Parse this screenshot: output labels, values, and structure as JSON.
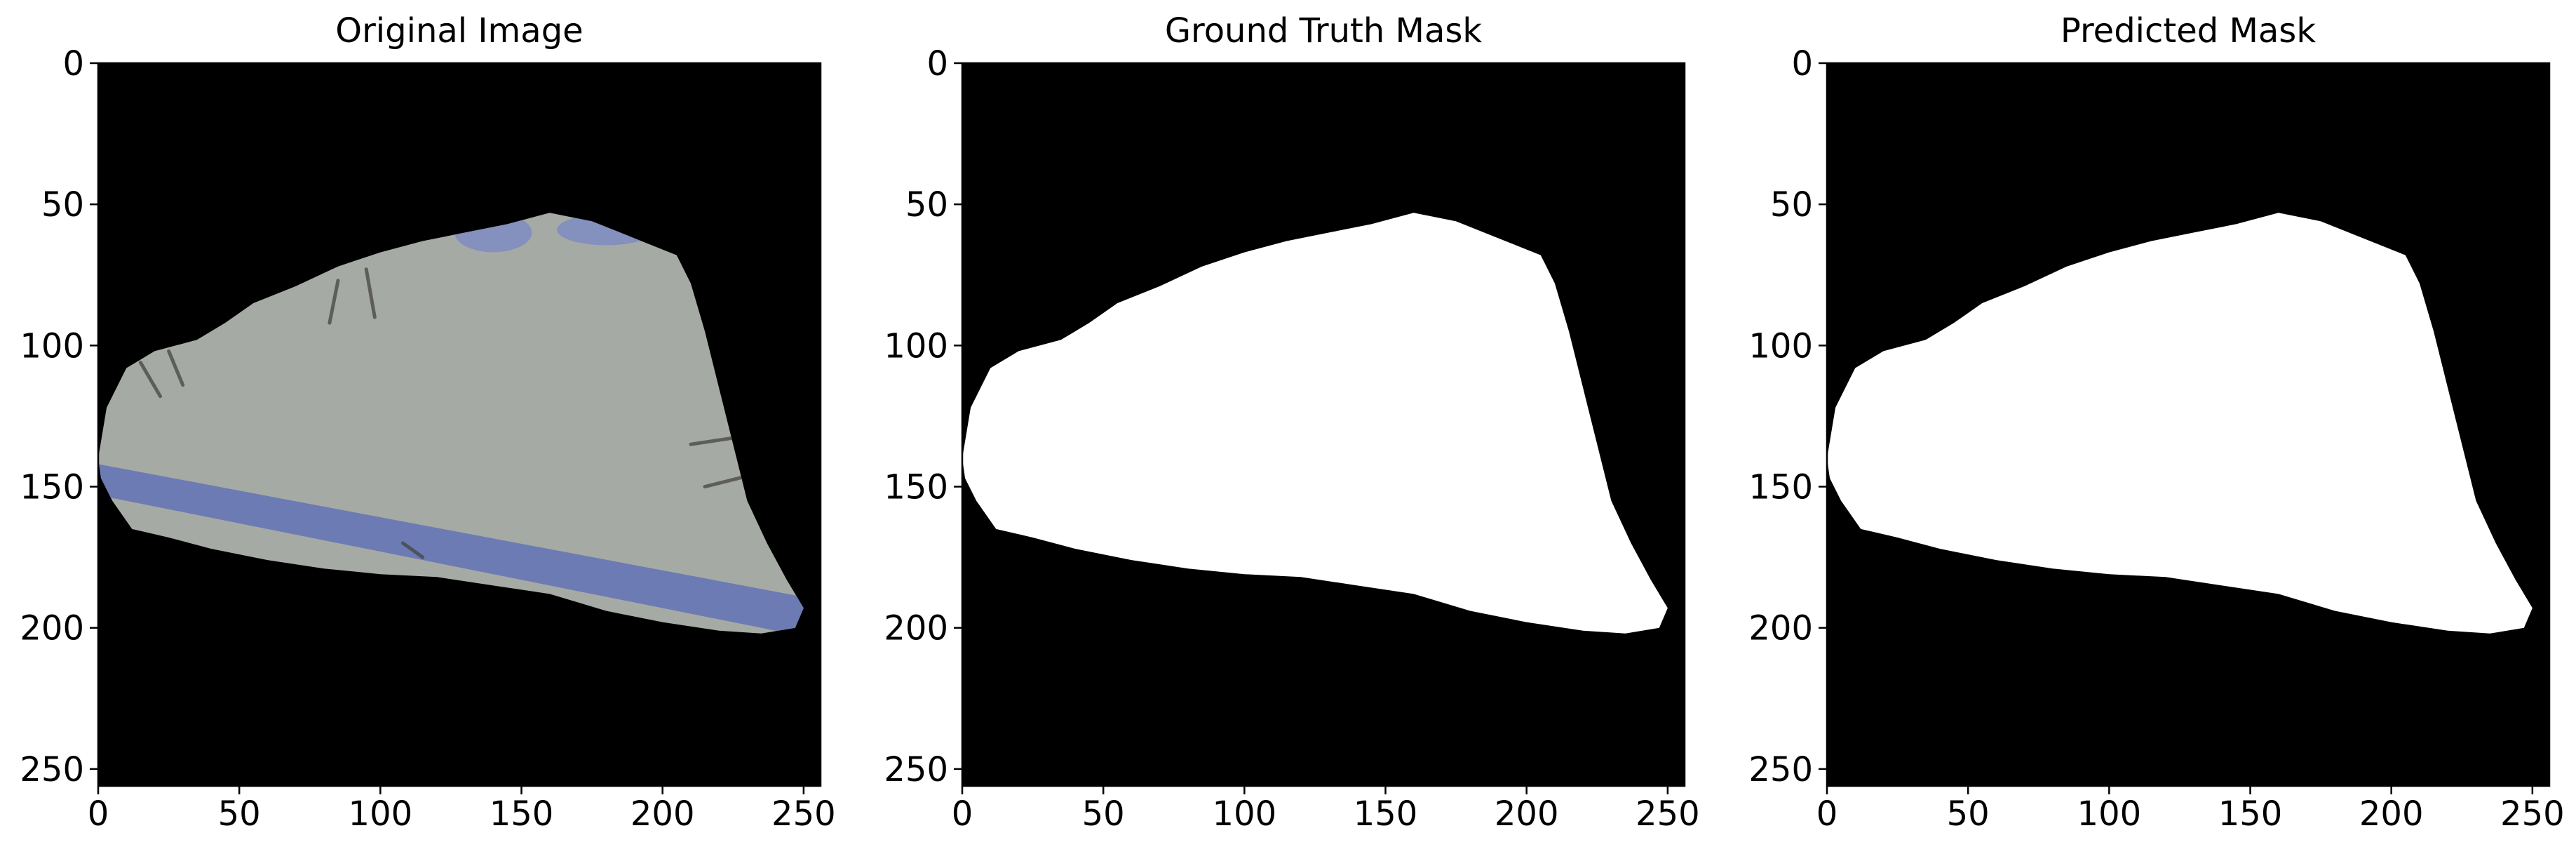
{
  "chart_data": [
    {
      "type": "image",
      "title": "Original Image",
      "content": "photo",
      "xlim": [
        0,
        256
      ],
      "ylim": [
        256,
        0
      ],
      "xticks": [
        0,
        50,
        100,
        150,
        200,
        250
      ],
      "yticks": [
        0,
        50,
        100,
        150,
        200,
        250
      ],
      "xlabel": "",
      "ylabel": "",
      "grid": false,
      "colors": {
        "background": "#000000",
        "sample": "#a6aaa4",
        "stripe": "#6878b4",
        "stain": "#7e8cc2",
        "mark": "#454545"
      }
    },
    {
      "type": "image",
      "title": "Ground Truth Mask",
      "content": "mask",
      "xlim": [
        0,
        256
      ],
      "ylim": [
        256,
        0
      ],
      "xticks": [
        0,
        50,
        100,
        150,
        200,
        250
      ],
      "yticks": [
        0,
        50,
        100,
        150,
        200,
        250
      ],
      "xlabel": "",
      "ylabel": "",
      "grid": false,
      "colors": {
        "background": "#000000",
        "foreground": "#ffffff"
      }
    },
    {
      "type": "image",
      "title": "Predicted Mask",
      "content": "mask",
      "xlim": [
        0,
        256
      ],
      "ylim": [
        256,
        0
      ],
      "xticks": [
        0,
        50,
        100,
        150,
        200,
        250
      ],
      "yticks": [
        0,
        50,
        100,
        150,
        200,
        250
      ],
      "xlabel": "",
      "ylabel": "",
      "grid": false,
      "colors": {
        "background": "#000000",
        "foreground": "#ffffff"
      }
    }
  ],
  "region_outline": [
    [
      0,
      140
    ],
    [
      3,
      122
    ],
    [
      10,
      108
    ],
    [
      20,
      102
    ],
    [
      35,
      98
    ],
    [
      45,
      92
    ],
    [
      55,
      85
    ],
    [
      70,
      79
    ],
    [
      85,
      72
    ],
    [
      100,
      67
    ],
    [
      115,
      63
    ],
    [
      130,
      60
    ],
    [
      145,
      57
    ],
    [
      160,
      53
    ],
    [
      175,
      56
    ],
    [
      190,
      62
    ],
    [
      205,
      68
    ],
    [
      210,
      78
    ],
    [
      215,
      95
    ],
    [
      220,
      115
    ],
    [
      225,
      135
    ],
    [
      230,
      155
    ],
    [
      237,
      170
    ],
    [
      244,
      183
    ],
    [
      250,
      193
    ],
    [
      247,
      200
    ],
    [
      235,
      202
    ],
    [
      220,
      201
    ],
    [
      200,
      198
    ],
    [
      180,
      194
    ],
    [
      160,
      188
    ],
    [
      140,
      185
    ],
    [
      120,
      182
    ],
    [
      100,
      181
    ],
    [
      80,
      179
    ],
    [
      60,
      176
    ],
    [
      40,
      172
    ],
    [
      25,
      168
    ],
    [
      12,
      165
    ],
    [
      5,
      155
    ],
    [
      1,
      147
    ]
  ]
}
